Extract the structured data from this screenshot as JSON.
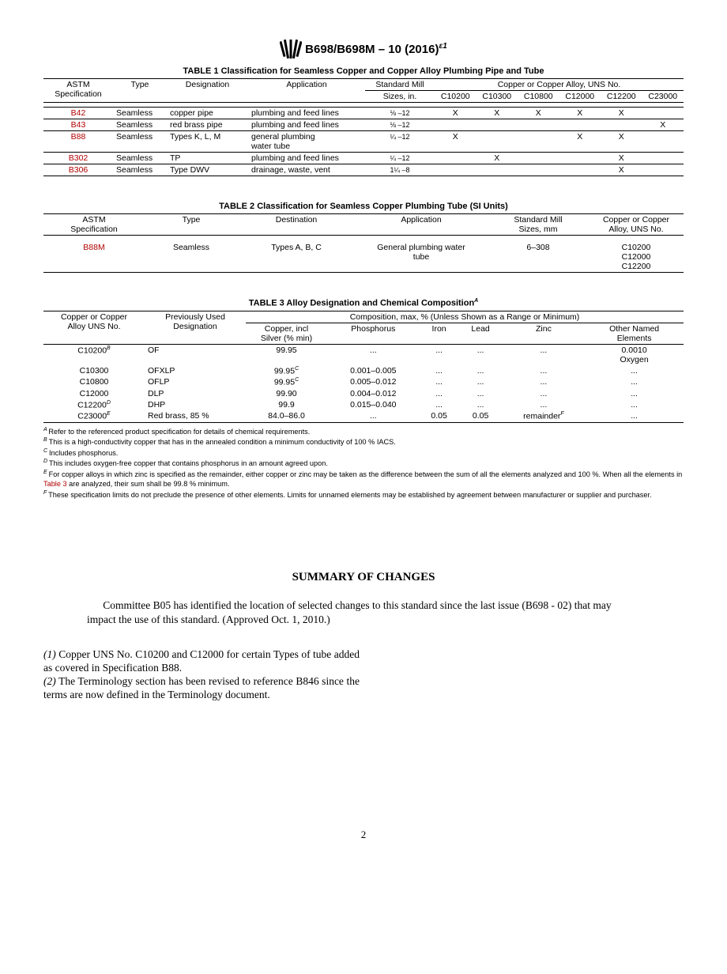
{
  "header": {
    "title": "B698/B698M – 10 (2016)",
    "eps": "ε1"
  },
  "table1": {
    "title": "TABLE 1 Classification for Seamless Copper and Copper Alloy Plumbing Pipe and Tube",
    "group_header": "Copper or Copper Alloy, UNS No.",
    "cols": [
      "ASTM Specification",
      "Type",
      "Designation",
      "Application",
      "Standard Mill Sizes, in.",
      "C10200",
      "C10300",
      "C10800",
      "C12000",
      "C12200",
      "C23000"
    ],
    "rows": [
      {
        "spec": "B42",
        "type": "Seamless",
        "desig": "copper pipe",
        "app": "plumbing and feed lines",
        "size": "⅛ –12",
        "c10200": "X",
        "c10300": "X",
        "c10800": "X",
        "c12000": "X",
        "c12200": "X",
        "c23000": ""
      },
      {
        "spec": "B43",
        "type": "Seamless",
        "desig": "red brass pipe",
        "app": "plumbing and feed lines",
        "size": "⅛ –12",
        "c10200": "",
        "c10300": "",
        "c10800": "",
        "c12000": "",
        "c12200": "",
        "c23000": "X"
      },
      {
        "spec": "B88",
        "type": "Seamless",
        "desig": "Types K, L, M",
        "app": "general plumbing water tube",
        "size": "¼ –12",
        "c10200": "X",
        "c10300": "",
        "c10800": "",
        "c12000": "X",
        "c12200": "X",
        "c23000": ""
      },
      {
        "spec": "B302",
        "type": "Seamless",
        "desig": "TP",
        "app": "plumbing and feed lines",
        "size": "¼ –12",
        "c10200": "",
        "c10300": "X",
        "c10800": "",
        "c12000": "",
        "c12200": "X",
        "c23000": ""
      },
      {
        "spec": "B306",
        "type": "Seamless",
        "desig": "Type DWV",
        "app": "drainage, waste, vent",
        "size": "1¼ –8",
        "c10200": "",
        "c10300": "",
        "c10800": "",
        "c12000": "",
        "c12200": "X",
        "c23000": ""
      }
    ]
  },
  "table2": {
    "title": "TABLE 2 Classification for Seamless Copper Plumbing Tube (SI Units)",
    "cols": [
      "ASTM Specification",
      "Type",
      "Destination",
      "Application",
      "Standard Mill Sizes, mm",
      "Copper or Copper Alloy, UNS No."
    ],
    "row": {
      "spec": "B88M",
      "type": "Seamless",
      "dest": "Types A, B, C",
      "app": "General plumbing water tube",
      "size": "6–308",
      "uns": "C10200\nC12000\nC12200"
    }
  },
  "table3": {
    "title": "TABLE 3 Alloy Designation and Chemical Composition",
    "title_sup": "A",
    "group_header": "Composition, max, % (Unless Shown as a Range or Minimum)",
    "cols": [
      "Copper or Copper Alloy UNS No.",
      "Previously Used Designation",
      "Copper, incl Silver (% min)",
      "Phosphorus",
      "Iron",
      "Lead",
      "Zinc",
      "Other Named Elements"
    ],
    "rows": [
      {
        "uns": "C10200",
        "sup": "B",
        "prev": "OF",
        "cu": "99.95",
        "cu_sup": "",
        "p": "...",
        "fe": "...",
        "pb": "...",
        "zn": "...",
        "other": "0.0010 Oxygen"
      },
      {
        "uns": "C10300",
        "sup": "",
        "prev": "OFXLP",
        "cu": "99.95",
        "cu_sup": "C",
        "p": "0.001–0.005",
        "fe": "...",
        "pb": "...",
        "zn": "...",
        "other": "..."
      },
      {
        "uns": "C10800",
        "sup": "",
        "prev": "OFLP",
        "cu": "99.95",
        "cu_sup": "C",
        "p": "0.005–0.012",
        "fe": "...",
        "pb": "...",
        "zn": "...",
        "other": "..."
      },
      {
        "uns": "C12000",
        "sup": "",
        "prev": "DLP",
        "cu": "99.90",
        "cu_sup": "",
        "p": "0.004–0.012",
        "fe": "...",
        "pb": "...",
        "zn": "...",
        "other": "..."
      },
      {
        "uns": "C12200",
        "sup": "D",
        "prev": "DHP",
        "cu": "99.9",
        "cu_sup": "",
        "p": "0.015–0.040",
        "fe": "...",
        "pb": "...",
        "zn": "...",
        "other": "..."
      },
      {
        "uns": "C23000",
        "sup": "E",
        "prev": "Red brass, 85 %",
        "cu": "84.0–86.0",
        "cu_sup": "",
        "p": "...",
        "fe": "0.05",
        "pb": "0.05",
        "zn": "remainder",
        "zn_sup": "F",
        "other": "..."
      }
    ],
    "footnotes": {
      "A": "Refer to the referenced product specification for details of chemical requirements.",
      "B": "This is a high-conductivity copper that has in the annealed condition a minimum conductivity of 100 % IACS.",
      "C": "Includes phosphorus.",
      "D": "This includes oxygen-free copper that contains phosphorus in an amount agreed upon.",
      "E_pre": "For copper alloys in which zinc is specified as the remainder, either copper or zinc may be taken as the difference between the sum of all the elements analyzed and 100 %. When all the elements in ",
      "E_link": "Table 3",
      "E_post": " are analyzed, their sum shall be 99.8 % minimum.",
      "F": "These specification limits do not preclude the presence of other elements. Limits for unnamed elements may be established by agreement between manufacturer or supplier and purchaser."
    }
  },
  "summary": {
    "title": "SUMMARY OF CHANGES",
    "intro": "Committee B05 has identified the location of selected changes to this standard since the last issue (B698 - 02) that may impact the use of this standard. (Approved Oct. 1, 2010.)",
    "item1_label": "(1)",
    "item1": " Copper UNS No. C10200 and C12000 for certain Types of tube added as covered in Specification B88.",
    "item2_label": "(2)",
    "item2": " The Terminology section has been revised to reference B846 since the terms are now defined in the Terminology document."
  },
  "page_number": "2"
}
